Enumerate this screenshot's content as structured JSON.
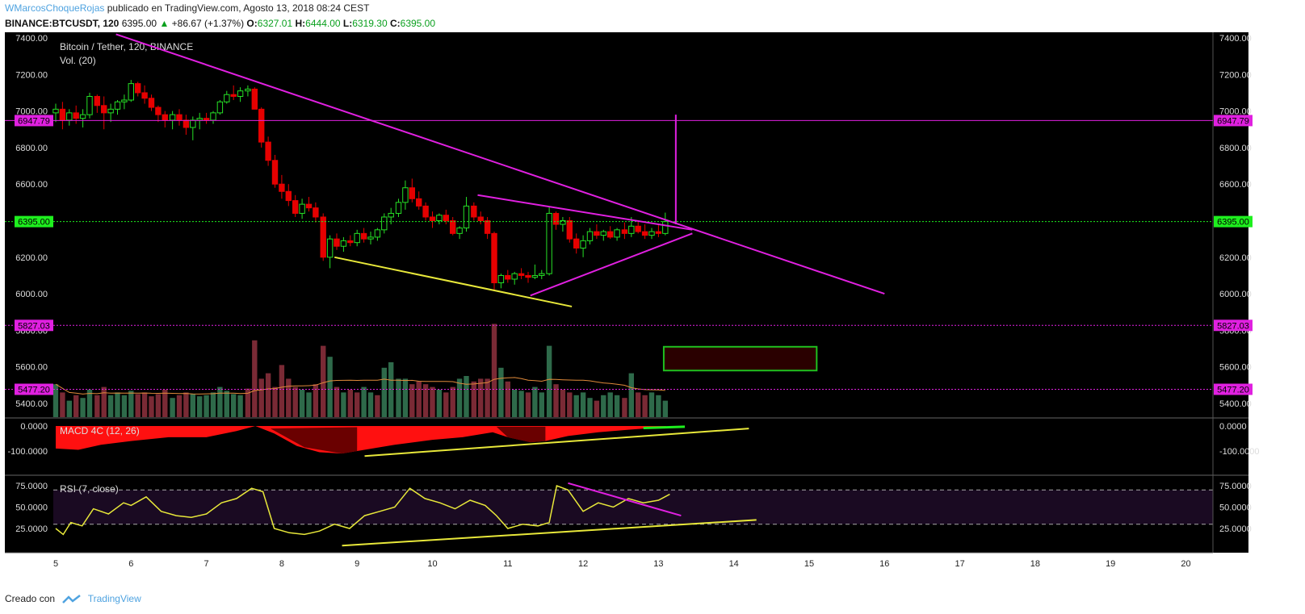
{
  "header": {
    "author": "WMarcosChoqueRojas",
    "published": "publicado en TradingView.com, Agosto 13, 2018 08:24 CEST",
    "symbol": "BINANCE:BTCUSDT, 120",
    "last": "6395.00",
    "change_icon": "triangle-up-icon",
    "change": "+86.67 (+1.37%)",
    "o_label": "O:",
    "o": "6327.01",
    "h_label": "H:",
    "h": "6444.00",
    "l_label": "L:",
    "l": "6319.30",
    "c_label": "C:",
    "c": "6395.00"
  },
  "footer": {
    "created_with": "Creado con",
    "brand": "TradingView",
    "logo_icon": "tradingview-logo-icon"
  },
  "colors": {
    "bull": "#26e026",
    "bear": "#e60000",
    "magenta": "#e020e0",
    "yellow": "#e8e83a",
    "vol_up": "#2e6a4a",
    "vol_down": "#7a2a35",
    "hline_last": "#1ef01e",
    "rsi_bg": "#1a0a22"
  },
  "chart_data": [
    {
      "type": "candlestick",
      "title": "Bitcoin / Tether, 120, BINANCE",
      "volume_label": "Vol. (20)",
      "ylim": [
        5300,
        7420
      ],
      "yticks": [
        "7400.00",
        "7200.00",
        "7000.00",
        "6800.00",
        "6600.00",
        "6400.00",
        "6200.00",
        "6000.00",
        "5800.00",
        "5600.00",
        "5400.00"
      ],
      "xticks": [
        "5",
        "6",
        "7",
        "8",
        "9",
        "10",
        "11",
        "12",
        "13",
        "14",
        "15",
        "16",
        "17",
        "18",
        "19",
        "20"
      ],
      "x_days": [
        5,
        6,
        7,
        8,
        9,
        10,
        11,
        12,
        13,
        14,
        15,
        16,
        17,
        18,
        19,
        20
      ],
      "candles": [
        [
          5.0,
          6990,
          7040,
          6940,
          7010
        ],
        [
          5.09,
          7010,
          7050,
          6900,
          6950
        ],
        [
          5.18,
          6950,
          7010,
          6920,
          6990
        ],
        [
          5.27,
          6990,
          7030,
          6930,
          6960
        ],
        [
          5.36,
          6960,
          7010,
          6910,
          6980
        ],
        [
          5.45,
          6980,
          7100,
          6960,
          7080
        ],
        [
          5.55,
          7080,
          7090,
          6990,
          7030
        ],
        [
          5.64,
          7030,
          7080,
          6900,
          6990
        ],
        [
          5.73,
          6990,
          7040,
          6940,
          7010
        ],
        [
          5.82,
          7010,
          7060,
          6980,
          7050
        ],
        [
          5.91,
          7050,
          7090,
          7010,
          7060
        ],
        [
          6.0,
          7060,
          7170,
          7050,
          7150
        ],
        [
          6.09,
          7150,
          7160,
          7080,
          7100
        ],
        [
          6.18,
          7100,
          7140,
          7040,
          7070
        ],
        [
          6.27,
          7070,
          7090,
          7000,
          7020
        ],
        [
          6.36,
          7020,
          7030,
          6940,
          6980
        ],
        [
          6.45,
          6980,
          7000,
          6910,
          6950
        ],
        [
          6.55,
          6950,
          7000,
          6900,
          6980
        ],
        [
          6.64,
          6980,
          7010,
          6920,
          6950
        ],
        [
          6.73,
          6950,
          6980,
          6870,
          6910
        ],
        [
          6.82,
          6910,
          6970,
          6840,
          6950
        ],
        [
          6.91,
          6950,
          6990,
          6900,
          6960
        ],
        [
          7.0,
          6960,
          6990,
          6930,
          6950
        ],
        [
          7.09,
          6950,
          7000,
          6930,
          6990
        ],
        [
          7.18,
          6990,
          7060,
          6980,
          7050
        ],
        [
          7.27,
          7050,
          7110,
          7040,
          7090
        ],
        [
          7.36,
          7090,
          7140,
          7060,
          7080
        ],
        [
          7.45,
          7080,
          7130,
          7050,
          7110
        ],
        [
          7.55,
          7110,
          7140,
          7080,
          7120
        ],
        [
          7.64,
          7120,
          7130,
          7010,
          7010
        ],
        [
          7.73,
          7010,
          7020,
          6800,
          6830
        ],
        [
          7.82,
          6830,
          6860,
          6700,
          6730
        ],
        [
          7.91,
          6730,
          6760,
          6580,
          6600
        ],
        [
          8.0,
          6600,
          6650,
          6520,
          6560
        ],
        [
          8.09,
          6560,
          6600,
          6480,
          6510
        ],
        [
          8.18,
          6510,
          6540,
          6420,
          6440
        ],
        [
          8.27,
          6440,
          6520,
          6410,
          6490
        ],
        [
          8.36,
          6490,
          6530,
          6450,
          6470
        ],
        [
          8.45,
          6470,
          6500,
          6390,
          6420
        ],
        [
          8.55,
          6420,
          6440,
          6180,
          6200
        ],
        [
          8.64,
          6200,
          6320,
          6140,
          6300
        ],
        [
          8.73,
          6300,
          6330,
          6240,
          6260
        ],
        [
          8.82,
          6260,
          6310,
          6230,
          6290
        ],
        [
          8.91,
          6290,
          6320,
          6260,
          6280
        ],
        [
          9.0,
          6280,
          6350,
          6260,
          6330
        ],
        [
          9.09,
          6330,
          6360,
          6280,
          6300
        ],
        [
          9.18,
          6300,
          6340,
          6270,
          6310
        ],
        [
          9.27,
          6310,
          6360,
          6290,
          6350
        ],
        [
          9.36,
          6350,
          6440,
          6330,
          6420
        ],
        [
          9.45,
          6420,
          6470,
          6380,
          6440
        ],
        [
          9.55,
          6440,
          6520,
          6420,
          6500
        ],
        [
          9.64,
          6500,
          6620,
          6460,
          6580
        ],
        [
          9.73,
          6580,
          6630,
          6500,
          6520
        ],
        [
          9.82,
          6520,
          6560,
          6460,
          6480
        ],
        [
          9.91,
          6480,
          6500,
          6400,
          6420
        ],
        [
          10.0,
          6420,
          6450,
          6360,
          6400
        ],
        [
          10.09,
          6400,
          6440,
          6380,
          6430
        ],
        [
          10.18,
          6430,
          6460,
          6380,
          6400
        ],
        [
          10.27,
          6400,
          6420,
          6320,
          6330
        ],
        [
          10.36,
          6330,
          6370,
          6300,
          6360
        ],
        [
          10.45,
          6360,
          6530,
          6340,
          6480
        ],
        [
          10.55,
          6480,
          6500,
          6400,
          6420
        ],
        [
          10.64,
          6420,
          6450,
          6380,
          6400
        ],
        [
          10.73,
          6400,
          6420,
          6300,
          6330
        ],
        [
          10.82,
          6330,
          6340,
          6020,
          6060
        ],
        [
          10.91,
          6060,
          6110,
          6030,
          6100
        ],
        [
          11.0,
          6100,
          6130,
          6060,
          6080
        ],
        [
          11.09,
          6080,
          6120,
          6050,
          6110
        ],
        [
          11.18,
          6110,
          6140,
          6080,
          6100
        ],
        [
          11.27,
          6100,
          6120,
          6060,
          6090
        ],
        [
          11.36,
          6090,
          6160,
          6080,
          6100
        ],
        [
          11.45,
          6100,
          6130,
          6080,
          6110
        ],
        [
          11.55,
          6110,
          6480,
          6100,
          6440
        ],
        [
          11.64,
          6440,
          6450,
          6350,
          6380
        ],
        [
          11.73,
          6380,
          6420,
          6340,
          6400
        ],
        [
          11.82,
          6400,
          6420,
          6280,
          6300
        ],
        [
          11.91,
          6300,
          6330,
          6220,
          6250
        ],
        [
          12.0,
          6250,
          6320,
          6200,
          6290
        ],
        [
          12.09,
          6290,
          6360,
          6270,
          6340
        ],
        [
          12.18,
          6340,
          6380,
          6300,
          6320
        ],
        [
          12.27,
          6320,
          6350,
          6290,
          6340
        ],
        [
          12.36,
          6340,
          6370,
          6300,
          6310
        ],
        [
          12.45,
          6310,
          6360,
          6290,
          6350
        ],
        [
          12.55,
          6350,
          6390,
          6300,
          6330
        ],
        [
          12.64,
          6330,
          6420,
          6310,
          6370
        ],
        [
          12.73,
          6370,
          6400,
          6330,
          6340
        ],
        [
          12.82,
          6340,
          6380,
          6300,
          6320
        ],
        [
          12.91,
          6320,
          6360,
          6300,
          6340
        ],
        [
          13.0,
          6340,
          6380,
          6310,
          6330
        ],
        [
          13.09,
          6330,
          6444,
          6320,
          6395
        ]
      ],
      "volumes": [
        [
          5.0,
          1,
          60
        ],
        [
          5.09,
          0,
          45
        ],
        [
          5.18,
          1,
          30
        ],
        [
          5.27,
          0,
          40
        ],
        [
          5.36,
          1,
          35
        ],
        [
          5.45,
          1,
          50
        ],
        [
          5.55,
          0,
          40
        ],
        [
          5.64,
          0,
          55
        ],
        [
          5.73,
          1,
          40
        ],
        [
          5.82,
          1,
          45
        ],
        [
          5.91,
          1,
          40
        ],
        [
          6.0,
          1,
          48
        ],
        [
          6.09,
          0,
          42
        ],
        [
          6.18,
          0,
          45
        ],
        [
          6.27,
          0,
          38
        ],
        [
          6.36,
          0,
          42
        ],
        [
          6.45,
          0,
          50
        ],
        [
          6.55,
          1,
          35
        ],
        [
          6.64,
          0,
          40
        ],
        [
          6.73,
          0,
          45
        ],
        [
          6.82,
          1,
          42
        ],
        [
          6.91,
          1,
          38
        ],
        [
          7.0,
          1,
          40
        ],
        [
          7.09,
          1,
          45
        ],
        [
          7.18,
          1,
          55
        ],
        [
          7.27,
          1,
          48
        ],
        [
          7.36,
          1,
          42
        ],
        [
          7.45,
          1,
          40
        ],
        [
          7.55,
          0,
          52
        ],
        [
          7.64,
          0,
          140
        ],
        [
          7.73,
          0,
          70
        ],
        [
          7.82,
          0,
          80
        ],
        [
          7.91,
          0,
          55
        ],
        [
          8.0,
          0,
          95
        ],
        [
          8.09,
          0,
          70
        ],
        [
          8.18,
          0,
          55
        ],
        [
          8.27,
          1,
          50
        ],
        [
          8.36,
          1,
          45
        ],
        [
          8.45,
          0,
          60
        ],
        [
          8.55,
          0,
          130
        ],
        [
          8.64,
          1,
          110
        ],
        [
          8.73,
          0,
          55
        ],
        [
          8.82,
          1,
          45
        ],
        [
          8.91,
          0,
          50
        ],
        [
          9.0,
          0,
          45
        ],
        [
          9.09,
          1,
          55
        ],
        [
          9.18,
          1,
          45
        ],
        [
          9.27,
          0,
          40
        ],
        [
          9.36,
          1,
          90
        ],
        [
          9.45,
          1,
          100
        ],
        [
          9.55,
          1,
          70
        ],
        [
          9.64,
          1,
          70
        ],
        [
          9.73,
          0,
          60
        ],
        [
          9.82,
          0,
          65
        ],
        [
          9.91,
          0,
          60
        ],
        [
          10.0,
          0,
          55
        ],
        [
          10.09,
          1,
          50
        ],
        [
          10.18,
          0,
          45
        ],
        [
          10.27,
          0,
          55
        ],
        [
          10.36,
          1,
          70
        ],
        [
          10.45,
          1,
          75
        ],
        [
          10.55,
          0,
          65
        ],
        [
          10.64,
          0,
          70
        ],
        [
          10.73,
          0,
          70
        ],
        [
          10.82,
          0,
          170
        ],
        [
          10.91,
          1,
          90
        ],
        [
          11.0,
          0,
          65
        ],
        [
          11.09,
          1,
          50
        ],
        [
          11.18,
          1,
          48
        ],
        [
          11.27,
          0,
          45
        ],
        [
          11.36,
          1,
          55
        ],
        [
          11.45,
          1,
          45
        ],
        [
          11.55,
          1,
          130
        ],
        [
          11.64,
          0,
          60
        ],
        [
          11.73,
          0,
          50
        ],
        [
          11.82,
          0,
          45
        ],
        [
          11.91,
          1,
          40
        ],
        [
          12.0,
          1,
          45
        ],
        [
          12.09,
          1,
          35
        ],
        [
          12.18,
          0,
          30
        ],
        [
          12.27,
          1,
          40
        ],
        [
          12.36,
          1,
          45
        ],
        [
          12.45,
          1,
          40
        ],
        [
          12.55,
          0,
          35
        ],
        [
          12.64,
          1,
          80
        ],
        [
          12.73,
          0,
          45
        ],
        [
          12.82,
          0,
          40
        ],
        [
          12.91,
          1,
          45
        ],
        [
          13.0,
          1,
          40
        ],
        [
          13.09,
          1,
          30
        ]
      ],
      "price_labels": [
        {
          "value": 6947.79,
          "text": "6947.79",
          "color": "#e020e0"
        },
        {
          "value": 6395.0,
          "text": "6395.00",
          "color": "#1ef01e"
        },
        {
          "value": 5827.03,
          "text": "5827.03",
          "color": "#e020e0"
        },
        {
          "value": 5477.2,
          "text": "5477.20",
          "color": "#e020e0"
        }
      ],
      "ylabel": "",
      "xlabel": ""
    },
    {
      "type": "area",
      "title": "MACD 4C (12, 26)",
      "ylim": [
        -130,
        10
      ],
      "yticks": [
        "0.0000",
        "-100.0000"
      ],
      "x": [
        5.0,
        5.3,
        5.6,
        6.0,
        6.5,
        7.0,
        7.4,
        7.65,
        7.9,
        8.2,
        8.5,
        8.8,
        9.0,
        9.5,
        10.0,
        10.4,
        10.8,
        11.0,
        11.3,
        11.5,
        11.8,
        12.2,
        12.6,
        12.9,
        13.1
      ],
      "values": [
        -90,
        -95,
        -75,
        -60,
        -45,
        -45,
        -20,
        0,
        -30,
        -80,
        -105,
        -110,
        -100,
        -75,
        -55,
        -45,
        -25,
        -45,
        -65,
        -60,
        -40,
        -25,
        -15,
        -8,
        -5
      ]
    },
    {
      "type": "line",
      "title": "RSI (7, close)",
      "ylim": [
        5,
        85
      ],
      "yticks": [
        "75.0000",
        "50.0000",
        "25.0000"
      ],
      "x": [
        5.0,
        5.1,
        5.2,
        5.35,
        5.5,
        5.7,
        5.9,
        6.0,
        6.2,
        6.4,
        6.6,
        6.8,
        7.0,
        7.2,
        7.4,
        7.6,
        7.75,
        7.9,
        8.1,
        8.3,
        8.5,
        8.7,
        8.9,
        9.1,
        9.3,
        9.5,
        9.7,
        9.9,
        10.1,
        10.3,
        10.5,
        10.7,
        10.85,
        11.0,
        11.2,
        11.4,
        11.55,
        11.65,
        11.8,
        12.0,
        12.2,
        12.4,
        12.6,
        12.8,
        13.0,
        13.15
      ],
      "values": [
        25,
        18,
        32,
        28,
        48,
        42,
        55,
        52,
        62,
        45,
        40,
        38,
        42,
        55,
        60,
        72,
        68,
        25,
        20,
        18,
        22,
        30,
        25,
        40,
        45,
        50,
        72,
        60,
        55,
        48,
        58,
        52,
        40,
        25,
        30,
        28,
        32,
        75,
        70,
        45,
        55,
        50,
        60,
        55,
        58,
        65
      ]
    }
  ]
}
